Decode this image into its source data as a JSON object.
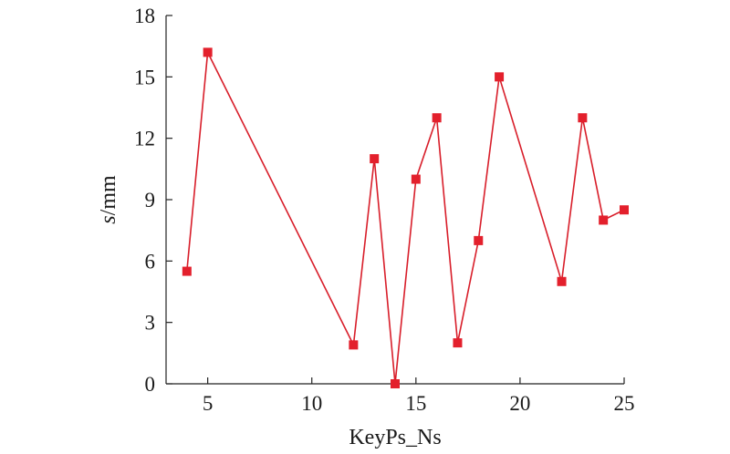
{
  "chart_data": {
    "type": "line",
    "xlabel": "KeyPs_Ns",
    "ylabel_italic": "s",
    "ylabel_rest": "/mm",
    "xlim": [
      3,
      25
    ],
    "ylim": [
      0,
      18
    ],
    "xticks": [
      5,
      10,
      15,
      20,
      25
    ],
    "yticks": [
      0,
      3,
      6,
      9,
      12,
      15,
      18
    ],
    "grid": false,
    "legend": "none",
    "series": [
      {
        "color": "#e3202c",
        "marker": "square",
        "x": [
          4,
          5,
          12,
          13,
          14,
          15,
          16,
          17,
          18,
          19,
          22,
          23,
          24,
          25
        ],
        "y": [
          5.5,
          16.2,
          1.9,
          11.0,
          0.0,
          10.0,
          13.0,
          2.0,
          7.0,
          15.0,
          5.0,
          13.0,
          8.0,
          8.5
        ]
      }
    ]
  }
}
